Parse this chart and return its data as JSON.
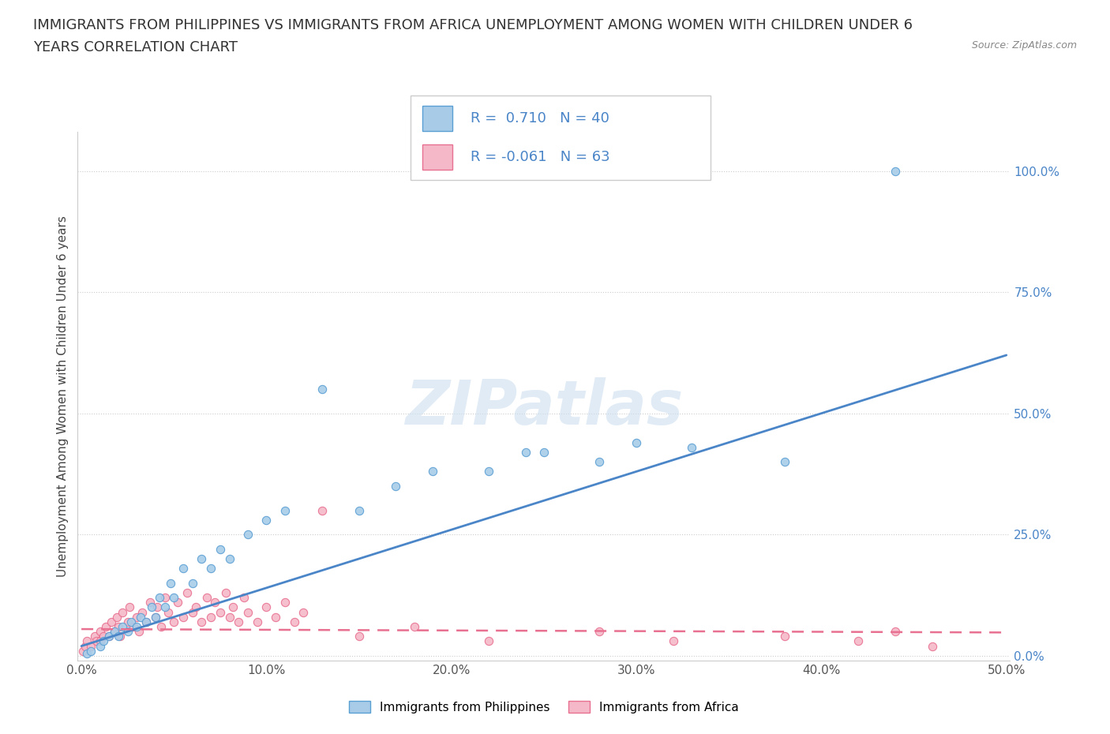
{
  "title_line1": "IMMIGRANTS FROM PHILIPPINES VS IMMIGRANTS FROM AFRICA UNEMPLOYMENT AMONG WOMEN WITH CHILDREN UNDER 6",
  "title_line2": "YEARS CORRELATION CHART",
  "source_text": "Source: ZipAtlas.com",
  "ylabel": "Unemployment Among Women with Children Under 6 years",
  "xlim": [
    -0.002,
    0.502
  ],
  "ylim": [
    -0.01,
    1.08
  ],
  "yticks": [
    0.0,
    0.25,
    0.5,
    0.75,
    1.0
  ],
  "ytick_labels": [
    "0.0%",
    "25.0%",
    "50.0%",
    "75.0%",
    "100.0%"
  ],
  "xticks": [
    0.0,
    0.1,
    0.2,
    0.3,
    0.4,
    0.5
  ],
  "xtick_labels": [
    "0.0%",
    "10.0%",
    "20.0%",
    "30.0%",
    "40.0%",
    "50.0%"
  ],
  "philippines_color": "#a8cce8",
  "africa_color": "#f5b8c8",
  "philippines_edge_color": "#5a9fd4",
  "africa_edge_color": "#e87090",
  "philippines_line_color": "#4a85c8",
  "africa_line_color": "#e87090",
  "r_philippines": 0.71,
  "n_philippines": 40,
  "r_africa": -0.061,
  "n_africa": 63,
  "watermark": "ZIPatlas",
  "legend_label_1": "Immigrants from Philippines",
  "legend_label_2": "Immigrants from Africa",
  "background_color": "#ffffff",
  "grid_color": "#cccccc",
  "title_fontsize": 13,
  "axis_label_fontsize": 11,
  "tick_fontsize": 11,
  "legend_fontsize": 11,
  "r_fontsize": 13,
  "philippines_x": [
    0.003,
    0.005,
    0.01,
    0.012,
    0.015,
    0.018,
    0.02,
    0.022,
    0.025,
    0.027,
    0.03,
    0.032,
    0.035,
    0.038,
    0.04,
    0.042,
    0.045,
    0.048,
    0.05,
    0.055,
    0.06,
    0.065,
    0.07,
    0.075,
    0.08,
    0.09,
    0.1,
    0.11,
    0.13,
    0.15,
    0.17,
    0.19,
    0.22,
    0.24,
    0.25,
    0.28,
    0.3,
    0.33,
    0.38,
    0.44
  ],
  "philippines_y": [
    0.005,
    0.01,
    0.02,
    0.03,
    0.04,
    0.05,
    0.04,
    0.06,
    0.05,
    0.07,
    0.06,
    0.08,
    0.07,
    0.1,
    0.08,
    0.12,
    0.1,
    0.15,
    0.12,
    0.18,
    0.15,
    0.2,
    0.18,
    0.22,
    0.2,
    0.25,
    0.28,
    0.3,
    0.55,
    0.3,
    0.35,
    0.38,
    0.38,
    0.42,
    0.42,
    0.4,
    0.44,
    0.43,
    0.4,
    1.0
  ],
  "africa_x": [
    0.001,
    0.002,
    0.003,
    0.005,
    0.007,
    0.008,
    0.01,
    0.01,
    0.012,
    0.013,
    0.015,
    0.016,
    0.018,
    0.019,
    0.02,
    0.021,
    0.022,
    0.025,
    0.026,
    0.028,
    0.03,
    0.031,
    0.033,
    0.035,
    0.037,
    0.04,
    0.041,
    0.043,
    0.045,
    0.047,
    0.05,
    0.052,
    0.055,
    0.057,
    0.06,
    0.062,
    0.065,
    0.068,
    0.07,
    0.072,
    0.075,
    0.078,
    0.08,
    0.082,
    0.085,
    0.088,
    0.09,
    0.095,
    0.1,
    0.105,
    0.11,
    0.115,
    0.12,
    0.13,
    0.15,
    0.18,
    0.22,
    0.28,
    0.32,
    0.38,
    0.42,
    0.44,
    0.46
  ],
  "africa_y": [
    0.01,
    0.02,
    0.03,
    0.02,
    0.04,
    0.03,
    0.05,
    0.03,
    0.04,
    0.06,
    0.04,
    0.07,
    0.05,
    0.08,
    0.06,
    0.04,
    0.09,
    0.07,
    0.1,
    0.06,
    0.08,
    0.05,
    0.09,
    0.07,
    0.11,
    0.08,
    0.1,
    0.06,
    0.12,
    0.09,
    0.07,
    0.11,
    0.08,
    0.13,
    0.09,
    0.1,
    0.07,
    0.12,
    0.08,
    0.11,
    0.09,
    0.13,
    0.08,
    0.1,
    0.07,
    0.12,
    0.09,
    0.07,
    0.1,
    0.08,
    0.11,
    0.07,
    0.09,
    0.3,
    0.04,
    0.06,
    0.03,
    0.05,
    0.03,
    0.04,
    0.03,
    0.05,
    0.02
  ],
  "phil_line_x": [
    0.0,
    0.5
  ],
  "phil_line_y": [
    0.02,
    0.62
  ],
  "afr_line_x": [
    0.0,
    0.5
  ],
  "afr_line_y": [
    0.055,
    0.048
  ]
}
